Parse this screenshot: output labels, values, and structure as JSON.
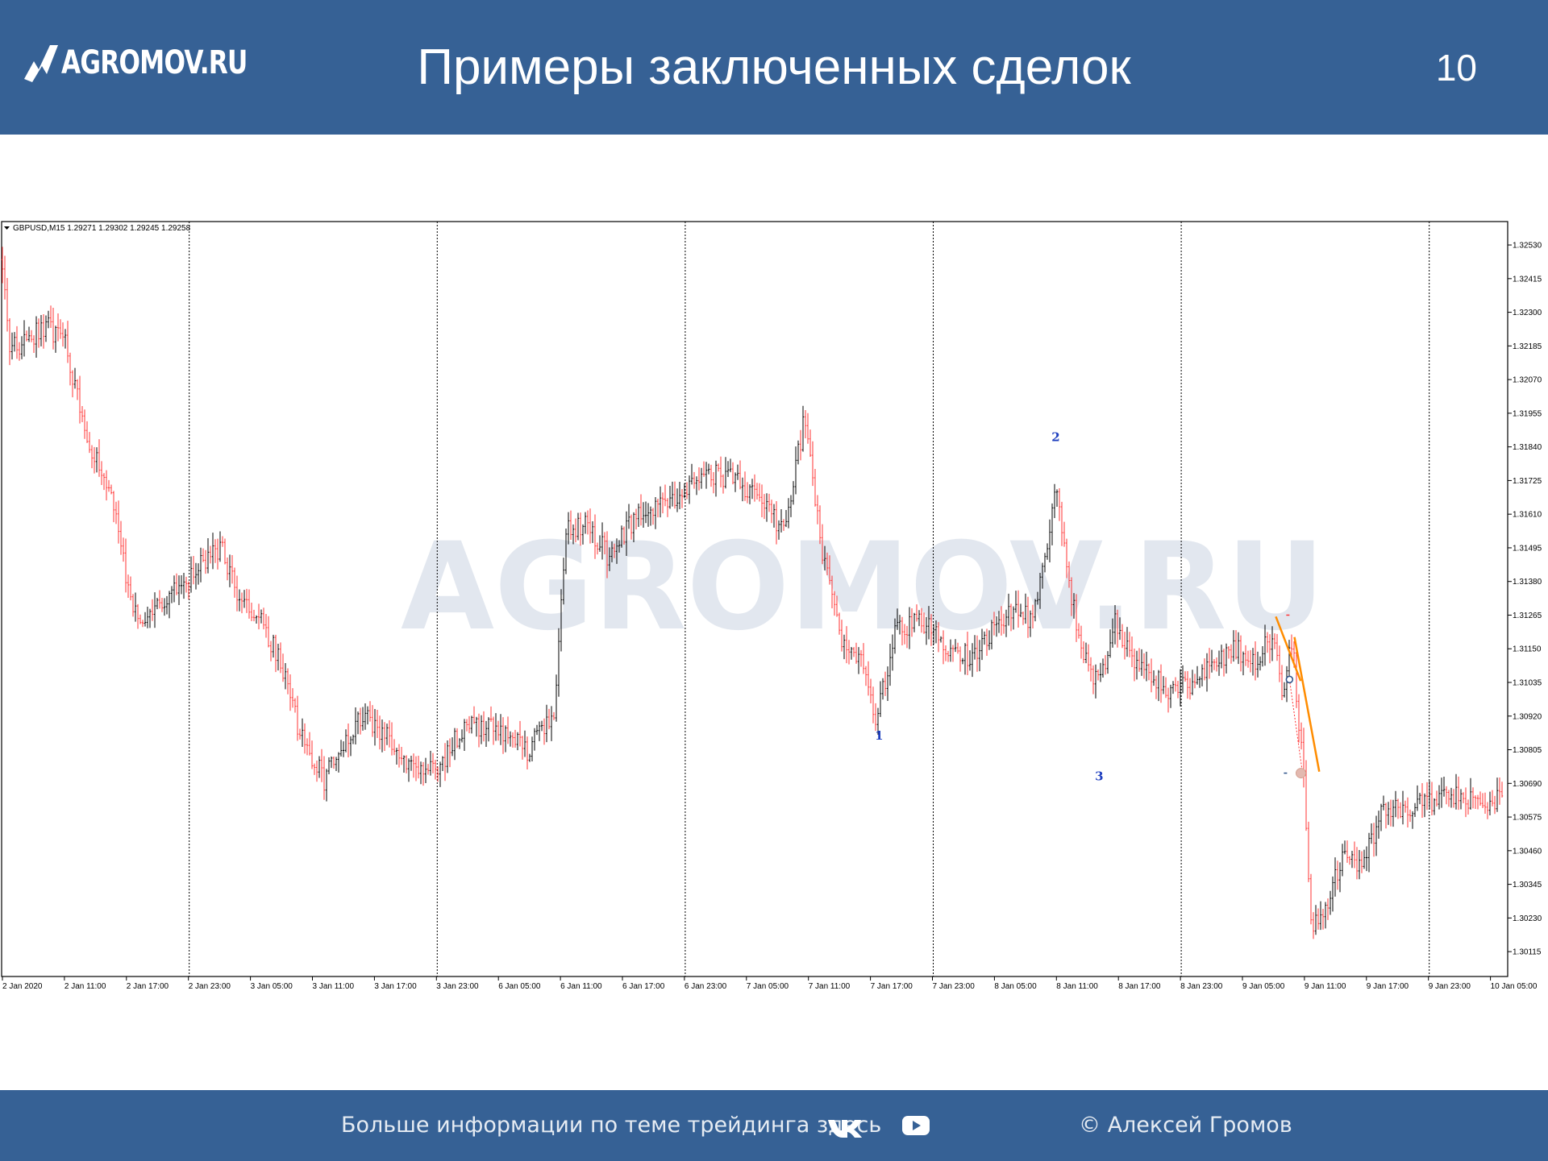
{
  "header": {
    "logo_text": "AGROMOV.RU",
    "title": "Примеры заключенных сделок",
    "page_number": "10"
  },
  "footer": {
    "info_text": "Больше информации по теме трейдинга здесь",
    "vk_icon": "vk-icon",
    "youtube_icon": "youtube-icon",
    "copyright": "© Алексей Громов"
  },
  "colors": {
    "header_bg": "#366195",
    "bull_candle": "#000000",
    "bear_candle": "#ff3333",
    "trendline": "#ff8c00",
    "label_blue": "#1f3fbf"
  },
  "chart_data": {
    "type": "candlestick",
    "symbol_info": "GBPUSD,M15  1.29271 1.29302 1.29245 1.29258",
    "watermark": "AGROMOV.RU",
    "ylim": [
      1.3003,
      1.3261
    ],
    "y_ticks": [
      "1.32530",
      "1.32415",
      "1.32300",
      "1.32185",
      "1.32070",
      "1.31955",
      "1.31840",
      "1.31725",
      "1.31610",
      "1.31495",
      "1.31380",
      "1.31265",
      "1.31150",
      "1.31035",
      "1.30920",
      "1.30805",
      "1.30690",
      "1.30575",
      "1.30460",
      "1.30345",
      "1.30230",
      "1.30115"
    ],
    "x_ticks": [
      "2 Jan 2020",
      "2 Jan 11:00",
      "2 Jan 17:00",
      "2 Jan 23:00",
      "3 Jan 05:00",
      "3 Jan 11:00",
      "3 Jan 17:00",
      "3 Jan 23:00",
      "6 Jan 05:00",
      "6 Jan 11:00",
      "6 Jan 17:00",
      "6 Jan 23:00",
      "7 Jan 05:00",
      "7 Jan 11:00",
      "7 Jan 17:00",
      "7 Jan 23:00",
      "8 Jan 05:00",
      "8 Jan 11:00",
      "8 Jan 17:00",
      "8 Jan 23:00",
      "9 Jan 05:00",
      "9 Jan 11:00",
      "9 Jan 17:00",
      "9 Jan 23:00",
      "10 Jan 05:00"
    ],
    "session_separators": [
      3,
      7,
      11,
      15,
      19,
      23
    ],
    "price_path": [
      [
        0,
        1.3248
      ],
      [
        0.1,
        1.3218
      ],
      [
        0.4,
        1.322
      ],
      [
        0.7,
        1.3226
      ],
      [
        1.0,
        1.322
      ],
      [
        1.4,
        1.3185
      ],
      [
        1.8,
        1.3165
      ],
      [
        2.05,
        1.3132
      ],
      [
        2.3,
        1.3124
      ],
      [
        2.7,
        1.3135
      ],
      [
        3.0,
        1.3139
      ],
      [
        3.3,
        1.3146
      ],
      [
        3.55,
        1.3149
      ],
      [
        3.8,
        1.3133
      ],
      [
        4.1,
        1.3128
      ],
      [
        4.5,
        1.311
      ],
      [
        4.8,
        1.3086
      ],
      [
        5.2,
        1.307
      ],
      [
        5.5,
        1.3083
      ],
      [
        5.8,
        1.3092
      ],
      [
        6.2,
        1.3085
      ],
      [
        6.6,
        1.3075
      ],
      [
        7.0,
        1.3073
      ],
      [
        7.4,
        1.3087
      ],
      [
        7.9,
        1.309
      ],
      [
        8.5,
        1.308
      ],
      [
        8.9,
        1.3095
      ],
      [
        9.1,
        1.3155
      ],
      [
        9.4,
        1.3158
      ],
      [
        9.8,
        1.3146
      ],
      [
        10.2,
        1.316
      ],
      [
        10.6,
        1.3163
      ],
      [
        11.0,
        1.317
      ],
      [
        11.3,
        1.3175
      ],
      [
        11.8,
        1.3173
      ],
      [
        12.2,
        1.3165
      ],
      [
        12.6,
        1.3155
      ],
      [
        12.95,
        1.3195
      ],
      [
        13.2,
        1.315
      ],
      [
        13.5,
        1.312
      ],
      [
        13.9,
        1.311
      ],
      [
        14.1,
        1.309
      ],
      [
        14.4,
        1.3122
      ],
      [
        14.8,
        1.3125
      ],
      [
        15.2,
        1.3116
      ],
      [
        15.6,
        1.3112
      ],
      [
        15.9,
        1.312
      ],
      [
        16.3,
        1.313
      ],
      [
        16.6,
        1.3125
      ],
      [
        16.9,
        1.3155
      ],
      [
        17.0,
        1.317
      ],
      [
        17.15,
        1.3145
      ],
      [
        17.4,
        1.3115
      ],
      [
        17.7,
        1.3102
      ],
      [
        17.95,
        1.3124
      ],
      [
        18.3,
        1.3108
      ],
      [
        18.6,
        1.3105
      ],
      [
        18.9,
        1.31
      ],
      [
        19.2,
        1.3104
      ],
      [
        19.5,
        1.311
      ],
      [
        19.9,
        1.3115
      ],
      [
        20.2,
        1.311
      ],
      [
        20.5,
        1.312
      ],
      [
        20.65,
        1.31
      ],
      [
        20.8,
        1.3118
      ],
      [
        21.0,
        1.3068
      ],
      [
        21.1,
        1.302
      ],
      [
        21.4,
        1.3028
      ],
      [
        21.6,
        1.3045
      ],
      [
        21.9,
        1.304
      ],
      [
        22.3,
        1.3062
      ],
      [
        22.6,
        1.3058
      ],
      [
        23.0,
        1.3063
      ],
      [
        23.5,
        1.3065
      ],
      [
        24.0,
        1.306
      ],
      [
        24.3,
        1.3069
      ]
    ],
    "trendlines": [
      {
        "from": [
          20.5,
          1.3126
        ],
        "to": [
          20.9,
          1.3104
        ]
      },
      {
        "from": [
          20.8,
          1.3119
        ],
        "to": [
          21.2,
          1.3073
        ]
      }
    ],
    "markers": [
      {
        "label": "1",
        "x": 14.1,
        "price": 1.3084
      },
      {
        "label": "2",
        "x": 16.95,
        "price": 1.3186
      },
      {
        "label": "3",
        "x": 17.65,
        "price": 1.307
      }
    ]
  }
}
